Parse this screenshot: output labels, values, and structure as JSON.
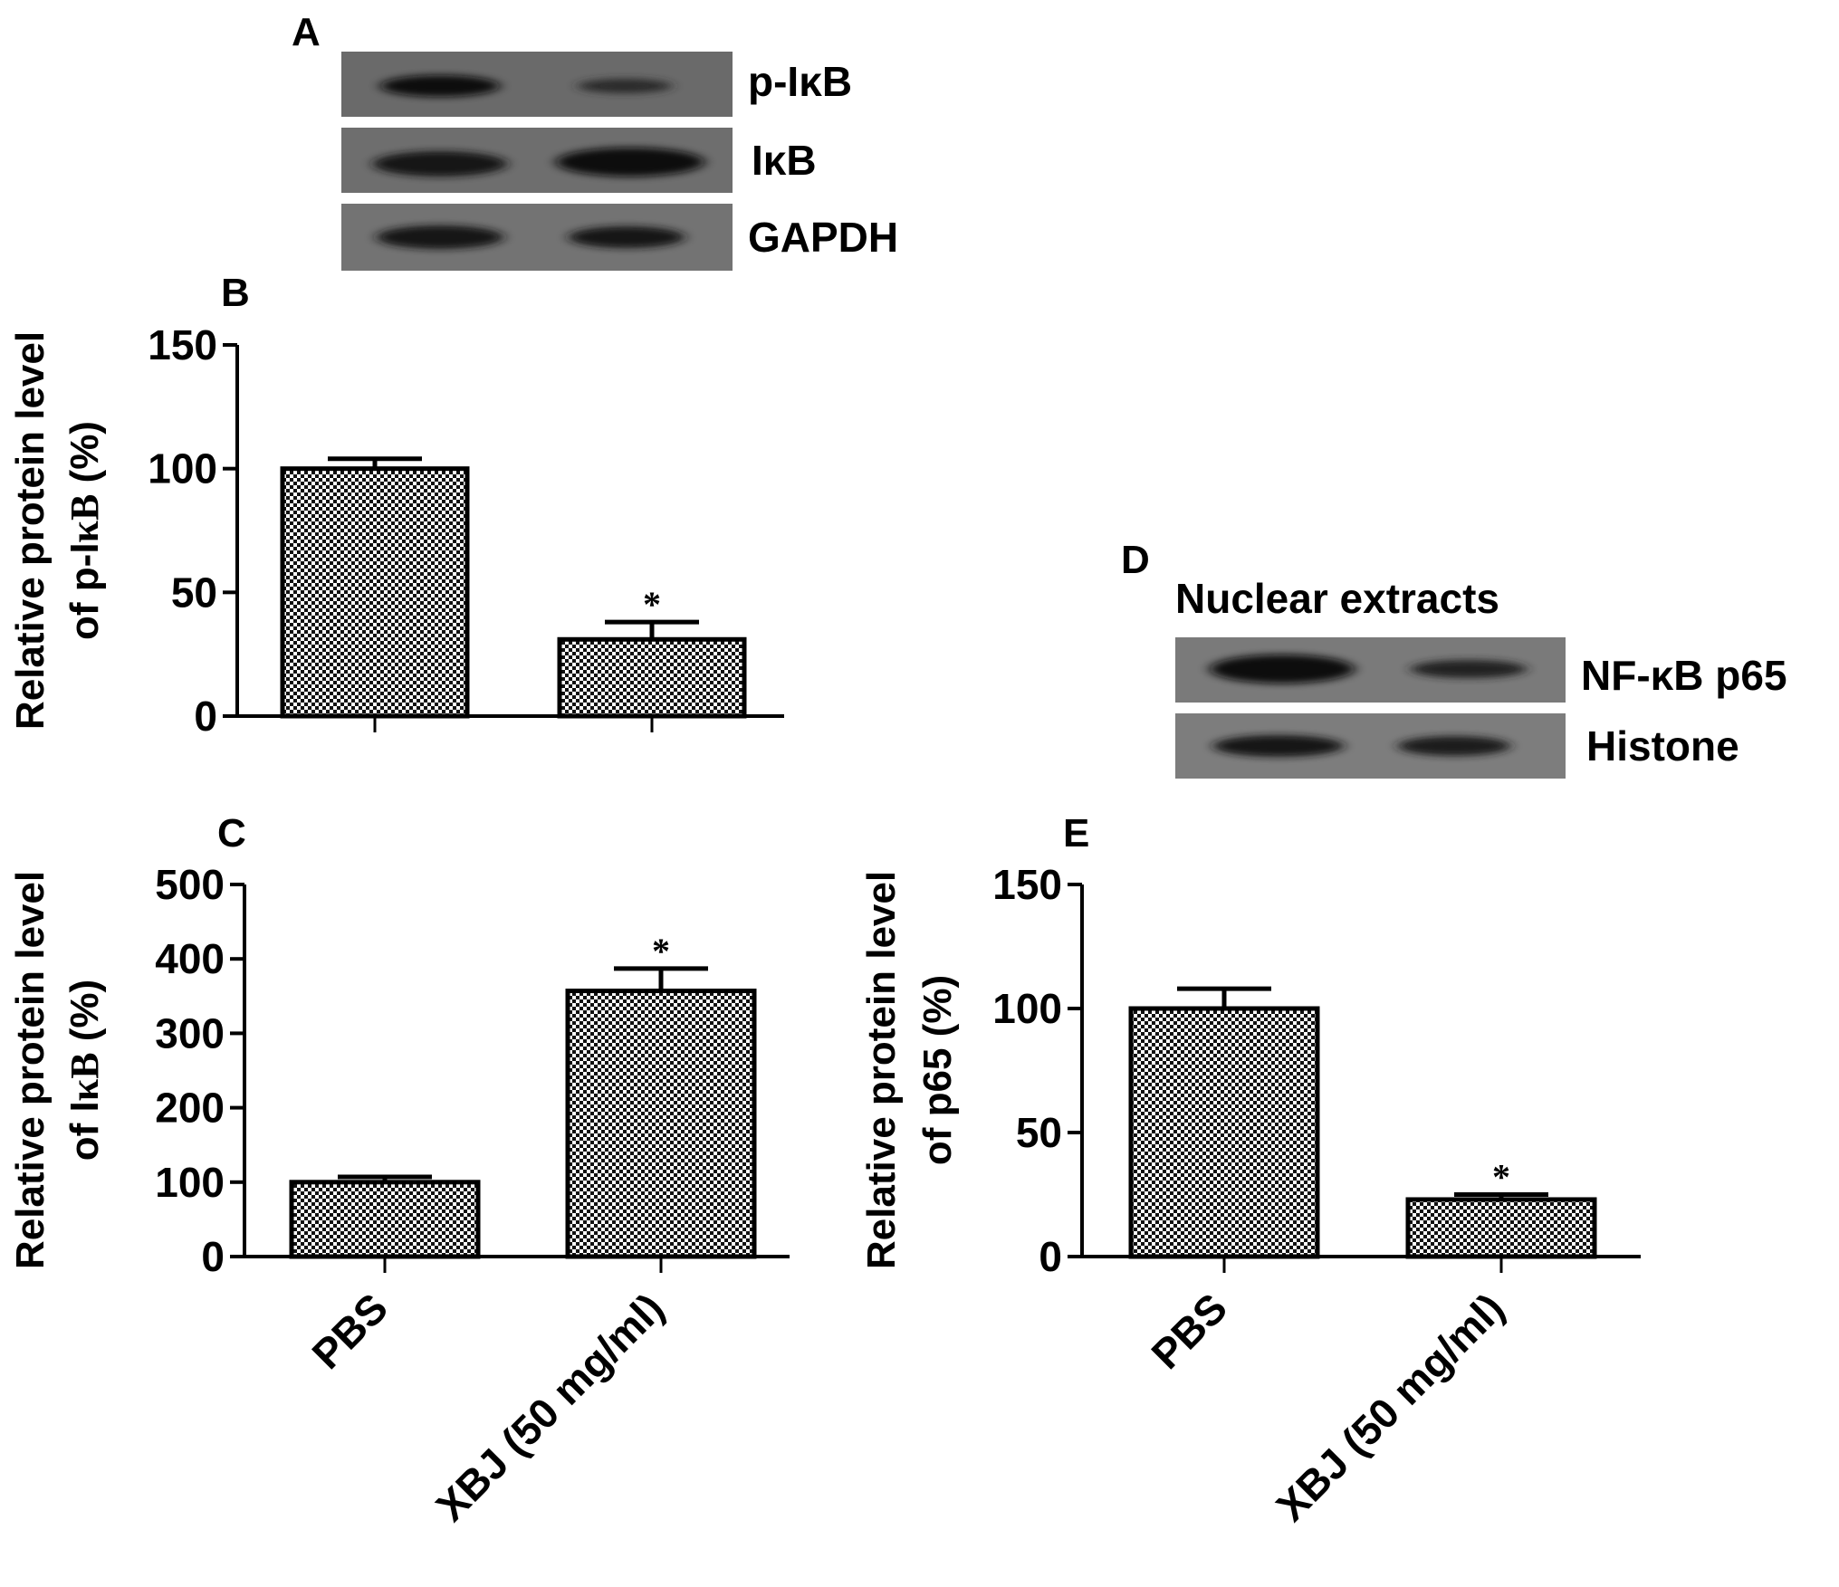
{
  "panels": {
    "A": {
      "letter": "A",
      "bands": [
        "p-IκB",
        "IκB",
        "GAPDH"
      ]
    },
    "D": {
      "letter": "D",
      "title": "Nuclear extracts",
      "bands": [
        "NF-κB p65",
        "Histone"
      ]
    },
    "B": {
      "letter": "B"
    },
    "C": {
      "letter": "C"
    },
    "E": {
      "letter": "E"
    }
  },
  "chart_data": [
    {
      "panel": "B",
      "type": "bar",
      "categories": [
        "PBS",
        "XBJ (50 mg/ml)"
      ],
      "values": [
        100,
        31
      ],
      "errors": [
        4,
        7
      ],
      "significance": [
        "",
        "*"
      ],
      "ylabel_line1": "Relative protein level",
      "ylabel_line2_prefix": "of p-I",
      "ylabel_line2_greek": "κB",
      "ylabel_line2_suffix": " (%)",
      "ylim": [
        0,
        150
      ],
      "yticks": [
        0,
        50,
        100,
        150
      ],
      "show_category_labels": false,
      "bar_pattern": "checkered black and white"
    },
    {
      "panel": "C",
      "type": "bar",
      "categories": [
        "PBS",
        "XBJ (50 mg/ml)"
      ],
      "values": [
        100,
        357
      ],
      "errors": [
        7,
        30
      ],
      "significance": [
        "",
        "*"
      ],
      "ylabel_line1": "Relative protein level",
      "ylabel_line2_prefix": "of I",
      "ylabel_line2_greek": "κB",
      "ylabel_line2_suffix": " (%)",
      "ylim": [
        0,
        500
      ],
      "yticks": [
        0,
        100,
        200,
        300,
        400,
        500
      ],
      "show_category_labels": true,
      "bar_pattern": "checkered black and white"
    },
    {
      "panel": "E",
      "type": "bar",
      "categories": [
        "PBS",
        "XBJ (50 mg/ml)"
      ],
      "values": [
        100,
        23
      ],
      "errors": [
        8,
        2
      ],
      "significance": [
        "",
        "*"
      ],
      "ylabel_line1": "Relative protein level",
      "ylabel_line2_prefix": "of p65 (%)",
      "ylabel_line2_greek": "",
      "ylabel_line2_suffix": "",
      "ylim": [
        0,
        150
      ],
      "yticks": [
        0,
        50,
        100,
        150
      ],
      "show_category_labels": true,
      "bar_pattern": "checkered black and white"
    }
  ]
}
